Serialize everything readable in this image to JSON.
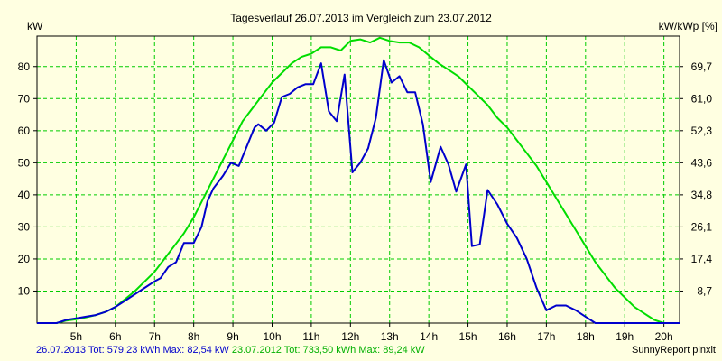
{
  "chart_data": {
    "type": "line",
    "title": "Tagesverlauf 26.07.2013 im Vergleich zum 23.07.2012",
    "ylabel": "kW",
    "ylabel_right": "kW/kWp [%]",
    "ylim": [
      0,
      89.5
    ],
    "xlim": [
      4.0,
      20.4
    ],
    "grid": true,
    "x_ticks": [
      {
        "x": 5,
        "label": "5h"
      },
      {
        "x": 6,
        "label": "6h"
      },
      {
        "x": 7,
        "label": "7h"
      },
      {
        "x": 8,
        "label": "8h"
      },
      {
        "x": 9,
        "label": "9h"
      },
      {
        "x": 10,
        "label": "10h"
      },
      {
        "x": 11,
        "label": "11h"
      },
      {
        "x": 12,
        "label": "12h"
      },
      {
        "x": 13,
        "label": "13h"
      },
      {
        "x": 14,
        "label": "14h"
      },
      {
        "x": 15,
        "label": "15h"
      },
      {
        "x": 16,
        "label": "16h"
      },
      {
        "x": 17,
        "label": "17h"
      },
      {
        "x": 18,
        "label": "18h"
      },
      {
        "x": 19,
        "label": "19h"
      },
      {
        "x": 20,
        "label": "20h"
      }
    ],
    "y_ticks": [
      10,
      20,
      30,
      40,
      50,
      60,
      70,
      80
    ],
    "y_ticks_right": [
      "8,7",
      "17,4",
      "26,1",
      "34,8",
      "43,6",
      "52,3",
      "61,0",
      "69,7"
    ],
    "series": [
      {
        "color": "#0000cc",
        "points": [
          [
            4.0,
            0
          ],
          [
            4.5,
            0
          ],
          [
            4.75,
            1
          ],
          [
            5.0,
            1.5
          ],
          [
            5.25,
            2
          ],
          [
            5.5,
            2.5
          ],
          [
            5.75,
            3.5
          ],
          [
            6.0,
            5
          ],
          [
            6.25,
            7
          ],
          [
            6.5,
            9
          ],
          [
            6.75,
            11
          ],
          [
            7.0,
            13
          ],
          [
            7.15,
            14
          ],
          [
            7.35,
            17.5
          ],
          [
            7.55,
            19
          ],
          [
            7.75,
            25
          ],
          [
            8.0,
            25
          ],
          [
            8.2,
            30
          ],
          [
            8.35,
            38
          ],
          [
            8.5,
            42
          ],
          [
            8.75,
            46
          ],
          [
            8.95,
            50
          ],
          [
            9.15,
            49
          ],
          [
            9.35,
            55
          ],
          [
            9.55,
            61
          ],
          [
            9.65,
            62
          ],
          [
            9.85,
            60
          ],
          [
            10.05,
            62.5
          ],
          [
            10.25,
            70.5
          ],
          [
            10.45,
            71.5
          ],
          [
            10.65,
            73.5
          ],
          [
            10.85,
            74.5
          ],
          [
            11.05,
            74.5
          ],
          [
            11.25,
            81
          ],
          [
            11.45,
            66
          ],
          [
            11.65,
            63
          ],
          [
            11.85,
            77.5
          ],
          [
            12.05,
            47
          ],
          [
            12.25,
            50
          ],
          [
            12.45,
            54.5
          ],
          [
            12.65,
            64
          ],
          [
            12.85,
            82
          ],
          [
            13.05,
            75
          ],
          [
            13.25,
            77
          ],
          [
            13.45,
            72
          ],
          [
            13.65,
            72
          ],
          [
            13.85,
            62
          ],
          [
            14.05,
            44
          ],
          [
            14.3,
            55
          ],
          [
            14.5,
            49.5
          ],
          [
            14.7,
            41
          ],
          [
            14.95,
            49.5
          ],
          [
            15.1,
            24
          ],
          [
            15.3,
            24.5
          ],
          [
            15.5,
            41.5
          ],
          [
            15.75,
            37
          ],
          [
            16.0,
            31
          ],
          [
            16.25,
            26.5
          ],
          [
            16.5,
            20
          ],
          [
            16.75,
            11
          ],
          [
            17.0,
            4
          ],
          [
            17.25,
            5.5
          ],
          [
            17.5,
            5.5
          ],
          [
            17.75,
            4
          ],
          [
            18.0,
            2
          ],
          [
            18.25,
            0
          ],
          [
            18.5,
            0
          ],
          [
            19.0,
            0
          ],
          [
            20.4,
            0
          ]
        ]
      },
      {
        "color": "#00dd00",
        "points": [
          [
            4.0,
            0
          ],
          [
            4.5,
            0
          ],
          [
            4.75,
            0.8
          ],
          [
            5.0,
            1.2
          ],
          [
            5.25,
            1.8
          ],
          [
            5.5,
            2.5
          ],
          [
            5.75,
            3.5
          ],
          [
            6.0,
            5
          ],
          [
            6.25,
            7.5
          ],
          [
            6.5,
            10
          ],
          [
            6.75,
            13
          ],
          [
            7.0,
            16
          ],
          [
            7.25,
            20
          ],
          [
            7.5,
            24
          ],
          [
            7.75,
            28
          ],
          [
            8.0,
            33
          ],
          [
            8.25,
            39
          ],
          [
            8.5,
            45
          ],
          [
            8.75,
            51
          ],
          [
            9.0,
            57
          ],
          [
            9.25,
            63
          ],
          [
            9.5,
            67
          ],
          [
            9.75,
            71
          ],
          [
            10.0,
            75
          ],
          [
            10.25,
            78
          ],
          [
            10.5,
            81
          ],
          [
            10.75,
            83
          ],
          [
            11.0,
            84
          ],
          [
            11.25,
            86
          ],
          [
            11.5,
            86
          ],
          [
            11.75,
            85
          ],
          [
            12.0,
            88
          ],
          [
            12.25,
            88.5
          ],
          [
            12.5,
            87.5
          ],
          [
            12.75,
            89
          ],
          [
            13.0,
            88
          ],
          [
            13.25,
            87.5
          ],
          [
            13.5,
            87.5
          ],
          [
            13.75,
            86
          ],
          [
            14.0,
            83.5
          ],
          [
            14.25,
            81
          ],
          [
            14.5,
            79
          ],
          [
            14.75,
            77
          ],
          [
            15.0,
            74
          ],
          [
            15.25,
            71
          ],
          [
            15.5,
            68
          ],
          [
            15.75,
            64
          ],
          [
            16.0,
            61
          ],
          [
            16.25,
            57
          ],
          [
            16.5,
            53
          ],
          [
            16.75,
            49
          ],
          [
            17.0,
            44
          ],
          [
            17.25,
            39
          ],
          [
            17.5,
            34
          ],
          [
            17.75,
            29
          ],
          [
            18.0,
            24
          ],
          [
            18.25,
            19
          ],
          [
            18.5,
            15
          ],
          [
            18.75,
            11
          ],
          [
            19.0,
            8
          ],
          [
            19.25,
            5
          ],
          [
            19.5,
            3
          ],
          [
            19.75,
            1
          ],
          [
            20.0,
            0
          ],
          [
            20.4,
            0
          ]
        ]
      }
    ]
  },
  "footer": {
    "blue_text": "26.07.2013 Tot: 579,23 kWh Max: 82,54 kW",
    "green_text": "23.07.2012 Tot: 733,50 kWh Max: 89,24 kW",
    "credit": "SunnyReport pinxit"
  },
  "colors": {
    "background": "#ffffe1",
    "grid": "#00cc00",
    "blue_series": "#0000cc",
    "green_series": "#00dd00",
    "green_text": "#00b000"
  }
}
